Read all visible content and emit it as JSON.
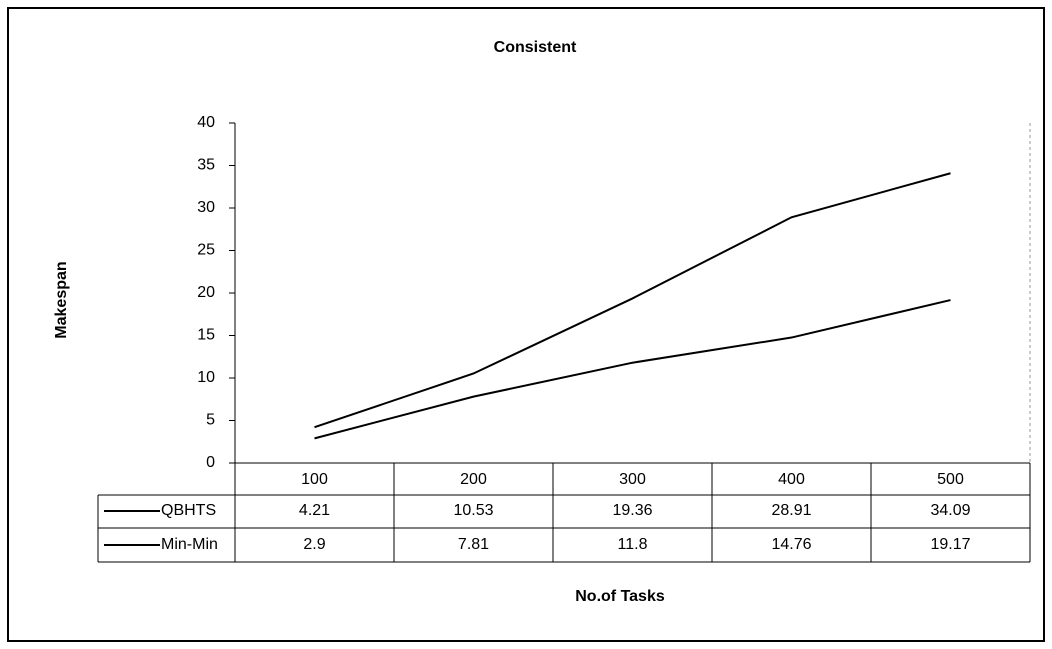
{
  "chart_data": {
    "type": "line",
    "title": "Consistent",
    "xlabel": "No.of Tasks",
    "ylabel": "Makespan",
    "categories": [
      "100",
      "200",
      "300",
      "400",
      "500"
    ],
    "series": [
      {
        "name": "QBHTS",
        "color": "#000000",
        "values": [
          4.21,
          10.53,
          19.36,
          28.91,
          34.09
        ]
      },
      {
        "name": "Min-Min",
        "color": "#000000",
        "values": [
          2.9,
          7.81,
          11.8,
          14.76,
          19.17
        ]
      }
    ],
    "ylim": [
      0,
      40
    ],
    "yticks": [
      0,
      5,
      10,
      15,
      20,
      25,
      30,
      35,
      40
    ],
    "grid": false
  }
}
